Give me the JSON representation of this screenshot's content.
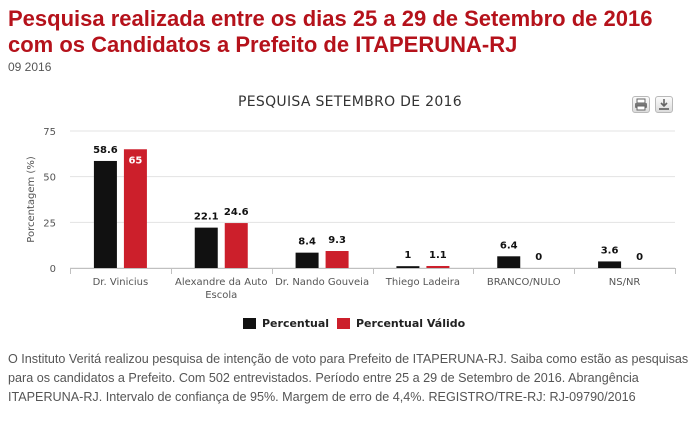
{
  "page": {
    "headline": "Pesquisa realizada entre os dias 25 a 29 de Setembro de 2016 com os Candidatos a Prefeito de ITAPERUNA-RJ",
    "date_line": "09 2016",
    "description": "O Instituto Veritá realizou pesquisa de intenção de voto para Prefeito de ITAPERUNA-RJ. Saiba como estão as pesquisas para os candidatos a Prefeito. Com 502 entrevistados. Período entre 25 a 29 de Setembro de 2016. Abrangência ITAPERUNA-RJ. Intervalo de confiança de 95%. Margem de erro de 4,4%. REGISTRO/TRE-RJ: RJ-09790/2016"
  },
  "toolbar": {
    "print_icon": "printer-icon",
    "download_icon": "download-icon"
  },
  "chart_data": {
    "type": "bar",
    "title": "PESQUISA SETEMBRO DE 2016",
    "ylabel": "Porcentagem (%)",
    "xlabel": "",
    "ylim": [
      0,
      75
    ],
    "yticks": [
      0,
      25,
      50,
      75
    ],
    "grid": true,
    "legend_position": "bottom",
    "categories": [
      [
        "Dr. Vinicius"
      ],
      [
        "Alexandre da Auto",
        "Escola"
      ],
      [
        "Dr. Nando Gouveia"
      ],
      [
        "Thiego Ladeira"
      ],
      [
        "BRANCO/NULO"
      ],
      [
        "NS/NR"
      ]
    ],
    "series": [
      {
        "name": "Percentual",
        "color": "#111111",
        "values": [
          58.6,
          22.1,
          8.4,
          1,
          6.4,
          3.6
        ]
      },
      {
        "name": "Percentual Válido",
        "color": "#cc1f2b",
        "values": [
          65,
          24.6,
          9.3,
          1.1,
          0,
          0
        ]
      }
    ]
  }
}
